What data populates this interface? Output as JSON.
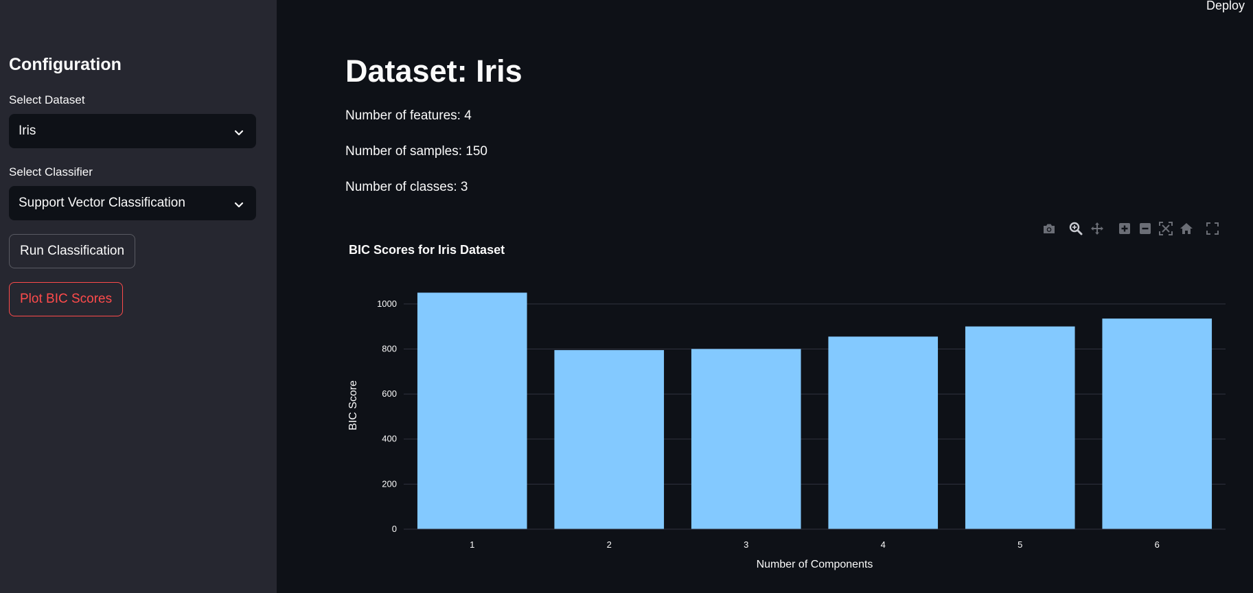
{
  "header": {
    "deploy_label": "Deploy"
  },
  "sidebar": {
    "title": "Configuration",
    "dataset_label": "Select Dataset",
    "dataset_value": "Iris",
    "classifier_label": "Select Classifier",
    "classifier_value": "Support Vector Classification",
    "run_button": "Run Classification",
    "plot_button": "Plot BIC Scores"
  },
  "main": {
    "title": "Dataset: Iris",
    "features": "Number of features: 4",
    "samples": "Number of samples: 150",
    "classes": "Number of classes: 3"
  },
  "modebar": [
    "camera-icon",
    "zoom-icon",
    "pan-icon",
    "zoom-in-icon",
    "zoom-out-icon",
    "autoscale-icon",
    "home-icon",
    "fullscreen-icon"
  ],
  "colors": {
    "bar": "#83c9ff",
    "accent": "#ff4b4b",
    "grid": "#31333f"
  },
  "chart_data": {
    "type": "bar",
    "title": "BIC Scores for Iris Dataset",
    "xlabel": "Number of Components",
    "ylabel": "BIC Score",
    "categories": [
      "1",
      "2",
      "3",
      "4",
      "5",
      "6"
    ],
    "values": [
      1050,
      795,
      800,
      855,
      900,
      935
    ],
    "yticks": [
      0,
      200,
      400,
      600,
      800,
      1000
    ],
    "ylim": [
      0,
      1100
    ],
    "grid": true
  }
}
